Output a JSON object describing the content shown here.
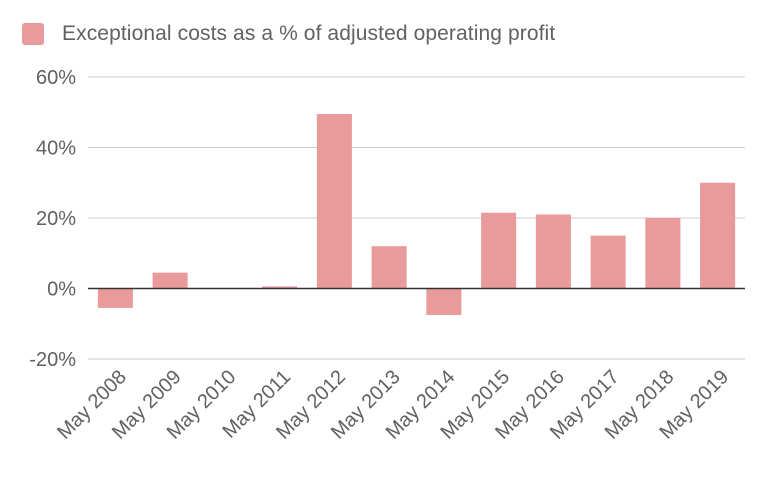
{
  "chart_data": {
    "type": "bar",
    "title": "",
    "xlabel": "",
    "ylabel": "",
    "categories": [
      "May 2008",
      "May 2009",
      "May 2010",
      "May 2011",
      "May 2012",
      "May 2013",
      "May 2014",
      "May 2015",
      "May 2016",
      "May 2017",
      "May 2018",
      "May 2019"
    ],
    "series": [
      {
        "name": "Exceptional costs as a % of adjusted operating profit",
        "values": [
          -5.5,
          4.5,
          0,
          0.6,
          49.5,
          12,
          -7.5,
          21.5,
          21,
          15,
          20,
          30
        ],
        "color": "#e99a9a"
      }
    ],
    "ylim": [
      -20,
      60
    ],
    "yticks": [
      -20,
      0,
      20,
      40,
      60
    ],
    "ytick_labels": [
      "-20%",
      "0%",
      "20%",
      "40%",
      "60%"
    ],
    "grid": true,
    "legend_position": "top-left"
  }
}
